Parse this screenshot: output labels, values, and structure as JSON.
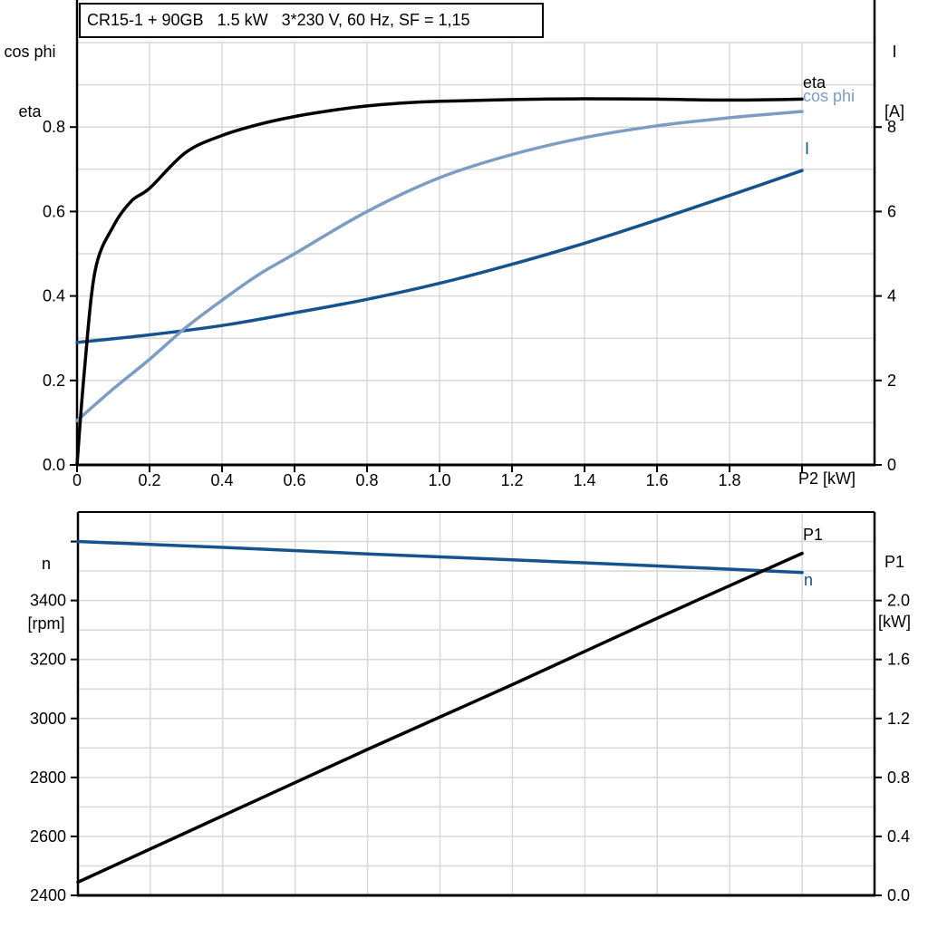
{
  "colors": {
    "curve_black": "#000000",
    "curve_dark_blue": "#15528E",
    "curve_light_blue": "#7B9CC3",
    "grid": "#D8D8D8",
    "axis": "#000000"
  },
  "chart_data": [
    {
      "type": "line",
      "title": "CR15-1 + 90GB   1.5 kW   3*230 V, 60 Hz, SF = 1,15",
      "xlabel": "P2 [kW]",
      "ylabel_left_lines": [
        "cos phi",
        "eta"
      ],
      "ylabel_right_lines": [
        "I",
        "[A]"
      ],
      "xlim": [
        0,
        2.2
      ],
      "ylim_left": [
        0,
        1.0
      ],
      "ylim_right": [
        0,
        10
      ],
      "grid_x_step": 0.2,
      "grid_y_left_step": 0.1,
      "x_ticks": [
        {
          "v": 0,
          "label": "0"
        },
        {
          "v": 0.2,
          "label": "0.2"
        },
        {
          "v": 0.4,
          "label": "0.4"
        },
        {
          "v": 0.6,
          "label": "0.6"
        },
        {
          "v": 0.8,
          "label": "0.8"
        },
        {
          "v": 1.0,
          "label": "1.0"
        },
        {
          "v": 1.2,
          "label": "1.2"
        },
        {
          "v": 1.4,
          "label": "1.4"
        },
        {
          "v": 1.6,
          "label": "1.6"
        },
        {
          "v": 1.8,
          "label": "1.8"
        },
        {
          "v": 2.0,
          "label": ""
        }
      ],
      "y_ticks_left": [
        {
          "v": 0,
          "label": "0.0"
        },
        {
          "v": 0.2,
          "label": "0.2"
        },
        {
          "v": 0.4,
          "label": "0.4"
        },
        {
          "v": 0.6,
          "label": "0.6"
        },
        {
          "v": 0.8,
          "label": "0.8"
        }
      ],
      "y_ticks_right": [
        {
          "v": 0,
          "label": "0"
        },
        {
          "v": 2,
          "label": "2"
        },
        {
          "v": 4,
          "label": "4"
        },
        {
          "v": 6,
          "label": "6"
        },
        {
          "v": 8,
          "label": "8"
        }
      ],
      "series": [
        {
          "name": "I",
          "label": "I",
          "axis": "right",
          "color_key": "curve_dark_blue",
          "x": [
            0,
            0.2,
            0.4,
            0.6,
            0.8,
            1.0,
            1.2,
            1.4,
            1.6,
            1.8,
            2.0
          ],
          "y": [
            2.9,
            3.08,
            3.3,
            3.6,
            3.92,
            4.3,
            4.75,
            5.25,
            5.8,
            6.38,
            6.97
          ]
        },
        {
          "name": "cos phi",
          "label": "cos phi",
          "axis": "left",
          "color_key": "curve_light_blue",
          "x": [
            0,
            0.1,
            0.2,
            0.3,
            0.4,
            0.5,
            0.6,
            0.8,
            1.0,
            1.2,
            1.4,
            1.6,
            1.8,
            2.0
          ],
          "y": [
            0.105,
            0.18,
            0.25,
            0.325,
            0.39,
            0.45,
            0.5,
            0.6,
            0.68,
            0.735,
            0.775,
            0.803,
            0.822,
            0.837
          ]
        },
        {
          "name": "eta",
          "label": "eta",
          "axis": "left",
          "color_key": "curve_black",
          "x": [
            0,
            0.02,
            0.05,
            0.1,
            0.15,
            0.2,
            0.3,
            0.4,
            0.5,
            0.6,
            0.7,
            0.8,
            0.9,
            1.0,
            1.2,
            1.4,
            1.6,
            1.8,
            2.0
          ],
          "y": [
            0,
            0.22,
            0.46,
            0.565,
            0.625,
            0.655,
            0.74,
            0.78,
            0.806,
            0.825,
            0.839,
            0.85,
            0.857,
            0.861,
            0.865,
            0.867,
            0.866,
            0.864,
            0.866
          ]
        }
      ]
    },
    {
      "type": "line",
      "xlabel": "",
      "ylabel_left_lines": [
        "n",
        "[rpm]"
      ],
      "ylabel_right_lines": [
        "P1",
        "[kW]"
      ],
      "xlim": [
        0,
        2.2
      ],
      "ylim_left": [
        2400,
        3700
      ],
      "ylim_right": [
        0,
        2.6
      ],
      "grid_x_step": 0.2,
      "grid_y_left_step": 100,
      "x_ticks": [],
      "y_ticks_left": [
        {
          "v": 2400,
          "label": "2400"
        },
        {
          "v": 2600,
          "label": "2600"
        },
        {
          "v": 2800,
          "label": "2800"
        },
        {
          "v": 3000,
          "label": "3000"
        },
        {
          "v": 3200,
          "label": "3200"
        },
        {
          "v": 3400,
          "label": "3400"
        },
        {
          "v": 3600,
          "label": ""
        }
      ],
      "y_ticks_right": [
        {
          "v": 0,
          "label": "0.0"
        },
        {
          "v": 0.4,
          "label": "0.4"
        },
        {
          "v": 0.8,
          "label": "0.8"
        },
        {
          "v": 1.2,
          "label": "1.2"
        },
        {
          "v": 1.6,
          "label": "1.6"
        },
        {
          "v": 2.0,
          "label": "2.0"
        }
      ],
      "series": [
        {
          "name": "n",
          "label": "n",
          "axis": "left",
          "color_key": "curve_dark_blue",
          "x": [
            0,
            0.4,
            0.8,
            1.2,
            1.6,
            2.0
          ],
          "y": [
            3600,
            3580,
            3558,
            3538,
            3517,
            3495
          ]
        },
        {
          "name": "P1",
          "label": "P1",
          "axis": "right",
          "color_key": "curve_black",
          "x": [
            0,
            0.4,
            0.8,
            1.2,
            1.6,
            2.0
          ],
          "y": [
            0.09,
            0.54,
            0.99,
            1.43,
            1.88,
            2.32
          ]
        }
      ]
    }
  ]
}
